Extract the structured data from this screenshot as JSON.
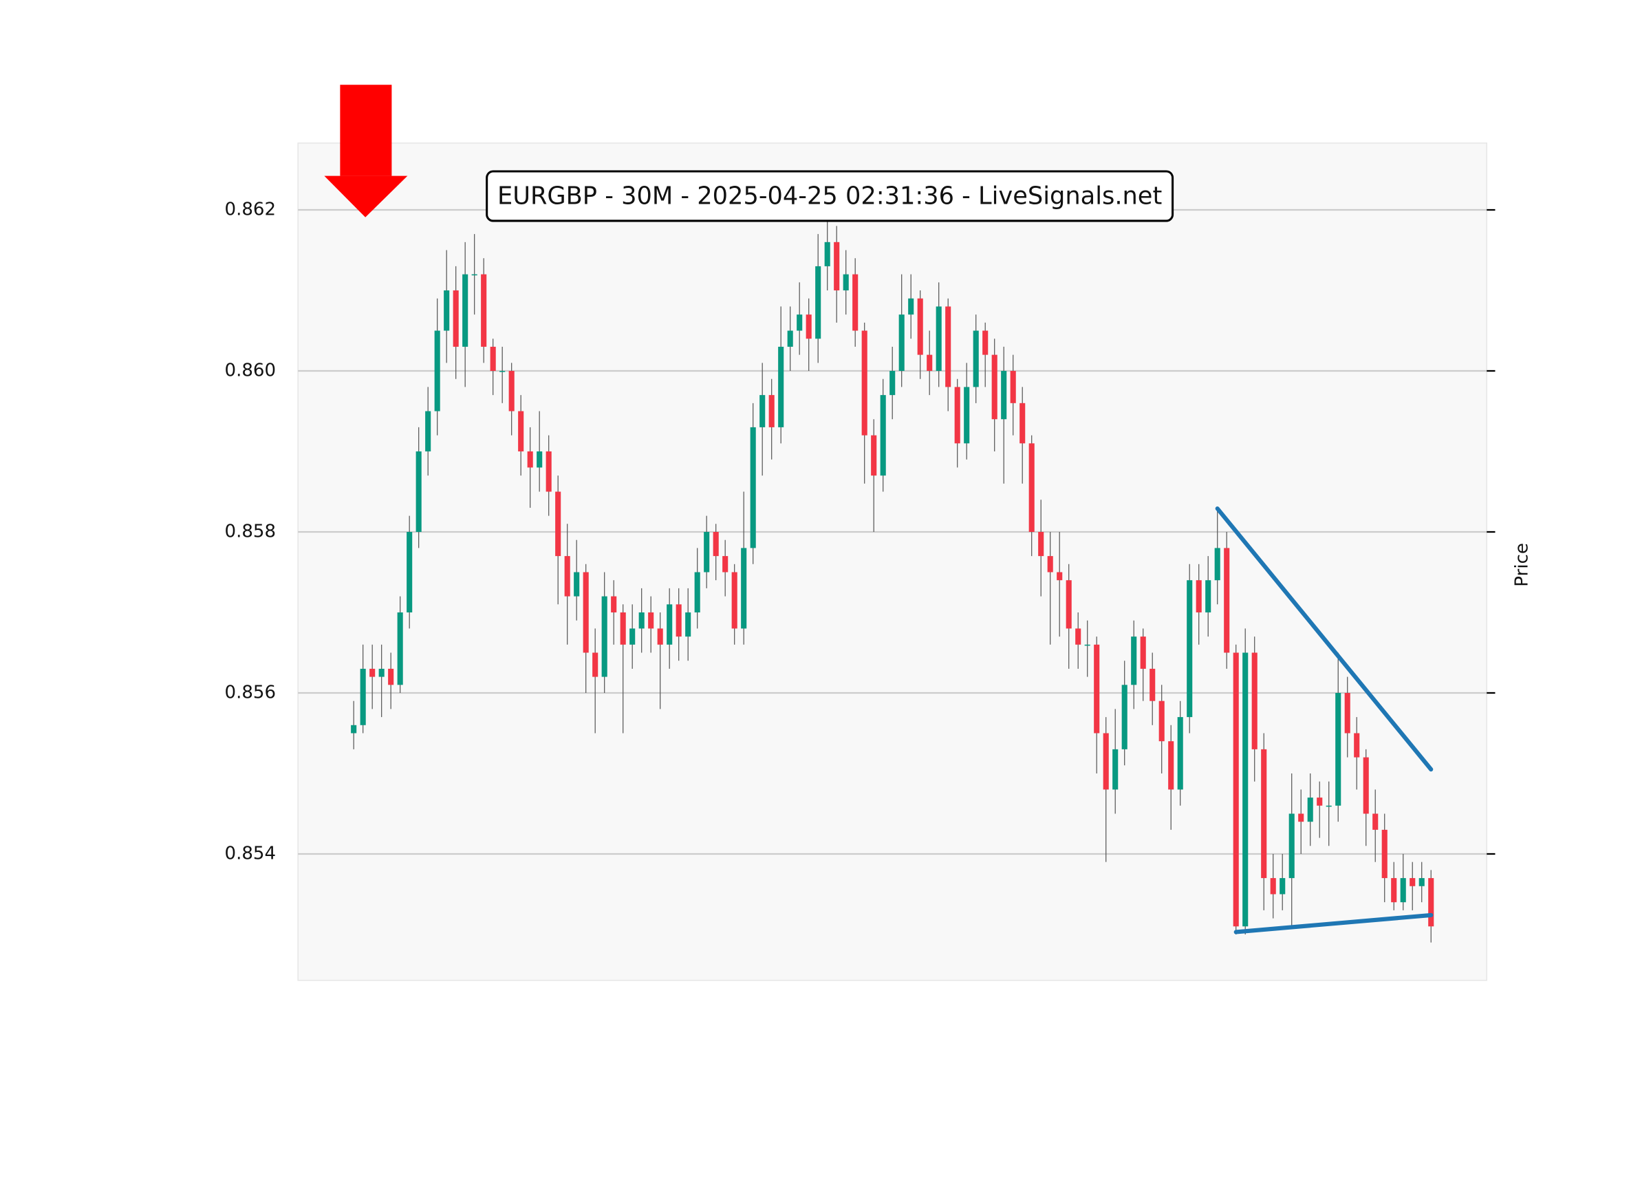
{
  "chart_data": {
    "type": "candlestick",
    "title": "EURGBP - 30M - 2025-04-25 02:31:36 - LiveSignals.net",
    "ylabel": "Price",
    "up_color": "#089981",
    "down_color": "#f23645",
    "wick_color": "#555555",
    "grid": true,
    "xlim": [
      -6,
      122
    ],
    "ylim": [
      0.85243,
      0.86283
    ],
    "yticks": [
      0.854,
      0.856,
      0.858,
      {
        "value": 0.86,
        "label": "0.860"
      },
      0.862
    ],
    "open": [
      0.8555,
      0.8556,
      0.8563,
      0.8562,
      0.8563,
      0.8561,
      0.857,
      0.858,
      0.859,
      0.8595,
      0.8605,
      0.861,
      0.8603,
      0.8612,
      0.8612,
      0.8603,
      0.86,
      0.86,
      0.8595,
      0.859,
      0.8588,
      0.859,
      0.8585,
      0.8577,
      0.8572,
      0.8575,
      0.8565,
      0.8562,
      0.8572,
      0.857,
      0.8566,
      0.8568,
      0.857,
      0.8568,
      0.8566,
      0.8571,
      0.8567,
      0.857,
      0.8575,
      0.858,
      0.8577,
      0.8575,
      0.8568,
      0.8578,
      0.8593,
      0.8597,
      0.8593,
      0.8603,
      0.8605,
      0.8607,
      0.8604,
      0.8613,
      0.8616,
      0.861,
      0.8612,
      0.8605,
      0.8592,
      0.8587,
      0.8597,
      0.86,
      0.8607,
      0.8609,
      0.8602,
      0.86,
      0.8608,
      0.8598,
      0.8591,
      0.8598,
      0.8605,
      0.8602,
      0.8594,
      0.86,
      0.8596,
      0.8591,
      0.858,
      0.8577,
      0.8575,
      0.8574,
      0.8568,
      0.8566,
      0.8566,
      0.8555,
      0.8548,
      0.8553,
      0.8561,
      0.8567,
      0.8563,
      0.8559,
      0.8554,
      0.8548,
      0.8557,
      0.8574,
      0.857,
      0.8574,
      0.8578,
      0.8565,
      0.8531,
      0.8565,
      0.8553,
      0.8537,
      0.8535,
      0.8537,
      0.8545,
      0.8544,
      0.8547,
      0.8546,
      0.8546,
      0.856,
      0.8555,
      0.8552,
      0.8545,
      0.8543,
      0.8537,
      0.8534,
      0.8537,
      0.8536,
      0.8537
    ],
    "high": [
      0.8559,
      0.8566,
      0.8566,
      0.8566,
      0.8565,
      0.8572,
      0.8582,
      0.8593,
      0.8598,
      0.8609,
      0.8615,
      0.8613,
      0.8616,
      0.8617,
      0.8614,
      0.8604,
      0.8603,
      0.8601,
      0.8597,
      0.8593,
      0.8595,
      0.8592,
      0.8587,
      0.8581,
      0.8579,
      0.8576,
      0.8568,
      0.8575,
      0.8574,
      0.8571,
      0.8571,
      0.8573,
      0.8572,
      0.857,
      0.8573,
      0.8573,
      0.8573,
      0.8578,
      0.8582,
      0.8581,
      0.8579,
      0.8576,
      0.8585,
      0.8596,
      0.8601,
      0.8599,
      0.8608,
      0.8608,
      0.8611,
      0.8609,
      0.8617,
      0.862,
      0.8618,
      0.8615,
      0.8614,
      0.8606,
      0.8594,
      0.8599,
      0.8603,
      0.8612,
      0.8612,
      0.861,
      0.8605,
      0.8611,
      0.8609,
      0.8599,
      0.8601,
      0.8607,
      0.8606,
      0.8604,
      0.8603,
      0.8602,
      0.8598,
      0.8592,
      0.8584,
      0.858,
      0.858,
      0.8576,
      0.857,
      0.8569,
      0.8567,
      0.8557,
      0.8558,
      0.8564,
      0.8569,
      0.8568,
      0.8565,
      0.8561,
      0.8556,
      0.8559,
      0.8576,
      0.8576,
      0.8577,
      0.8583,
      0.858,
      0.8566,
      0.8568,
      0.8567,
      0.8555,
      0.854,
      0.854,
      0.855,
      0.8548,
      0.855,
      0.8549,
      0.8549,
      0.8565,
      0.8562,
      0.8557,
      0.8553,
      0.8548,
      0.8545,
      0.8539,
      0.854,
      0.8539,
      0.8539,
      0.8538
    ],
    "low": [
      0.8553,
      0.8555,
      0.8558,
      0.8557,
      0.8558,
      0.856,
      0.8568,
      0.8578,
      0.8587,
      0.8592,
      0.8601,
      0.8599,
      0.8598,
      0.8607,
      0.8601,
      0.8597,
      0.8596,
      0.8592,
      0.8587,
      0.8583,
      0.8585,
      0.8582,
      0.8571,
      0.8566,
      0.8569,
      0.856,
      0.8555,
      0.856,
      0.8566,
      0.8555,
      0.8563,
      0.8565,
      0.8565,
      0.8558,
      0.8563,
      0.8564,
      0.8564,
      0.8568,
      0.8573,
      0.8574,
      0.8572,
      0.8566,
      0.8566,
      0.8576,
      0.8587,
      0.8589,
      0.8591,
      0.86,
      0.8602,
      0.86,
      0.8601,
      0.861,
      0.8606,
      0.8607,
      0.8603,
      0.8586,
      0.858,
      0.8585,
      0.8594,
      0.8598,
      0.8604,
      0.8599,
      0.8597,
      0.8598,
      0.8595,
      0.8588,
      0.8589,
      0.8596,
      0.8598,
      0.859,
      0.8586,
      0.8592,
      0.8586,
      0.8577,
      0.8572,
      0.8566,
      0.8567,
      0.8563,
      0.8563,
      0.8562,
      0.855,
      0.8539,
      0.8545,
      0.8551,
      0.8558,
      0.8559,
      0.8556,
      0.855,
      0.8543,
      0.8546,
      0.8555,
      0.8566,
      0.8567,
      0.8571,
      0.8563,
      0.853,
      0.853,
      0.8549,
      0.8533,
      0.8532,
      0.8533,
      0.8531,
      0.854,
      0.8541,
      0.8542,
      0.8541,
      0.8544,
      0.8552,
      0.8548,
      0.8541,
      0.8539,
      0.8534,
      0.8533,
      0.8533,
      0.8533,
      0.8534,
      0.8529
    ],
    "close": [
      0.8556,
      0.8563,
      0.8562,
      0.8563,
      0.8561,
      0.857,
      0.858,
      0.859,
      0.8595,
      0.8605,
      0.861,
      0.8603,
      0.8612,
      0.8612,
      0.8603,
      0.86,
      0.86,
      0.8595,
      0.859,
      0.8588,
      0.859,
      0.8585,
      0.8577,
      0.8572,
      0.8575,
      0.8565,
      0.8562,
      0.8572,
      0.857,
      0.8566,
      0.8568,
      0.857,
      0.8568,
      0.8566,
      0.8571,
      0.8567,
      0.857,
      0.8575,
      0.858,
      0.8577,
      0.8575,
      0.8568,
      0.8578,
      0.8593,
      0.8597,
      0.8593,
      0.8603,
      0.8605,
      0.8607,
      0.8604,
      0.8613,
      0.8616,
      0.861,
      0.8612,
      0.8605,
      0.8592,
      0.8587,
      0.8597,
      0.86,
      0.8607,
      0.8609,
      0.8602,
      0.86,
      0.8608,
      0.8598,
      0.8591,
      0.8598,
      0.8605,
      0.8602,
      0.8594,
      0.86,
      0.8596,
      0.8591,
      0.858,
      0.8577,
      0.8575,
      0.8574,
      0.8568,
      0.8566,
      0.8566,
      0.8555,
      0.8548,
      0.8553,
      0.8561,
      0.8567,
      0.8563,
      0.8559,
      0.8554,
      0.8548,
      0.8557,
      0.8574,
      0.857,
      0.8574,
      0.8578,
      0.8565,
      0.8531,
      0.8565,
      0.8553,
      0.8537,
      0.8535,
      0.8537,
      0.8545,
      0.8544,
      0.8547,
      0.8546,
      0.8546,
      0.856,
      0.8555,
      0.8552,
      0.8545,
      0.8543,
      0.8537,
      0.8534,
      0.8537,
      0.8536,
      0.8537,
      0.8531
    ],
    "trendlines": [
      {
        "color": "#1f77b4",
        "x": [
          93,
          116
        ],
        "y": [
          0.85829,
          0.85505
        ]
      },
      {
        "color": "#1f77b4",
        "x": [
          95,
          116
        ],
        "y": [
          0.85303,
          0.85324
        ]
      }
    ]
  }
}
